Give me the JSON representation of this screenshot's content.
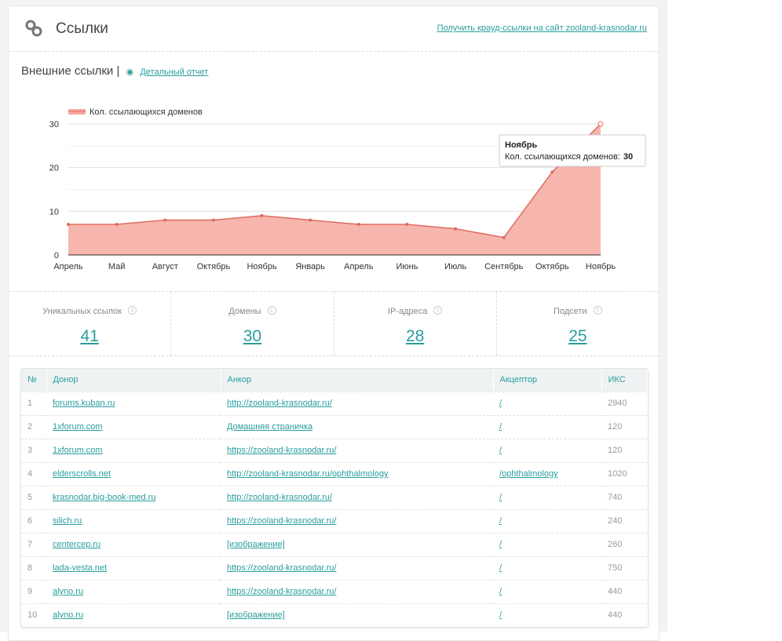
{
  "header": {
    "title": "Ссылки",
    "crowd_link": "Получить крауд-ссылки на сайт zooland-krasnodar.ru"
  },
  "section": {
    "title": "Внешние ссылки |",
    "detail_link": "Детальный отчет"
  },
  "chart_data": {
    "type": "area",
    "legend": "Кол. ссылающихся доменов",
    "legend_position": "top-left",
    "categories": [
      "Апрель",
      "Май",
      "Август",
      "Октябрь",
      "Ноябрь",
      "Январь",
      "Апрель",
      "Июнь",
      "Июль",
      "Сентябрь",
      "Октябрь",
      "Ноябрь"
    ],
    "values": [
      7,
      7,
      8,
      8,
      9,
      8,
      7,
      7,
      6,
      4,
      19,
      30
    ],
    "ylim": [
      0,
      30
    ],
    "yticks": [
      "0",
      "10",
      "20",
      "30"
    ],
    "color": "#f4a9a0",
    "line_color": "#e06b5e",
    "tooltip": {
      "title": "Ноябрь",
      "label": "Кол. ссылающихся доменов:",
      "value": "30"
    }
  },
  "stats": [
    {
      "label": "Уникальных ссылок",
      "value": "41"
    },
    {
      "label": "Домены",
      "value": "30"
    },
    {
      "label": "IP-адреса",
      "value": "28"
    },
    {
      "label": "Подсети",
      "value": "25"
    }
  ],
  "table": {
    "headers": [
      "№",
      "Донор",
      "Анкор",
      "Акцептор",
      "ИКС"
    ],
    "rows": [
      [
        "1",
        "forums.kuban.ru",
        "http://zooland-krasnodar.ru/",
        "/",
        "2940"
      ],
      [
        "2",
        "1xforum.com",
        "Домашняя страничка",
        "/",
        "120"
      ],
      [
        "3",
        "1xforum.com",
        "https://zooland-krasnodar.ru/",
        "/",
        "120"
      ],
      [
        "4",
        "elderscrolls.net",
        "http://zooland-krasnodar.ru/ophthalmology",
        "/ophthalmology",
        "1020"
      ],
      [
        "5",
        "krasnodar.big-book-med.ru",
        "http://zooland-krasnodar.ru/",
        "/",
        "740"
      ],
      [
        "6",
        "silich.ru",
        "https://zooland-krasnodar.ru/",
        "/",
        "240"
      ],
      [
        "7",
        "centercep.ru",
        "[изображение]",
        "/",
        "260"
      ],
      [
        "8",
        "lada-vesta.net",
        "https://zooland-krasnodar.ru/",
        "/",
        "750"
      ],
      [
        "9",
        "alyno.ru",
        "https://zooland-krasnodar.ru/",
        "/",
        "440"
      ],
      [
        "10",
        "alyno.ru",
        "[изображение]",
        "/",
        "440"
      ]
    ]
  }
}
